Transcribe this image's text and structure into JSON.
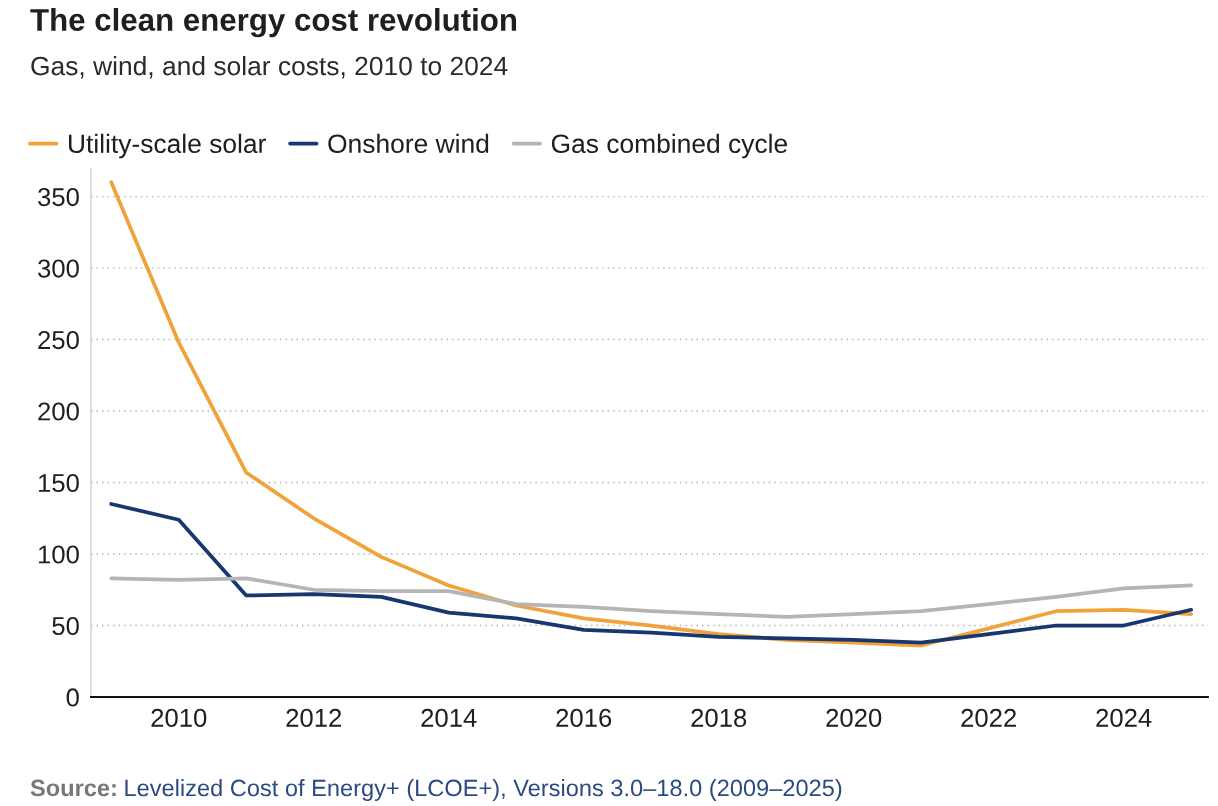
{
  "chart_data": {
    "type": "line",
    "title": "The clean energy cost revolution",
    "subtitle": "Gas, wind, and solar costs, 2010 to 2024",
    "x": [
      2009,
      2010,
      2011,
      2012,
      2013,
      2014,
      2015,
      2016,
      2017,
      2018,
      2019,
      2020,
      2021,
      2022,
      2023,
      2024,
      2025
    ],
    "series": [
      {
        "name": "Utility-scale solar",
        "color": "#f0a23b",
        "values": [
          360,
          248,
          157,
          125,
          98,
          78,
          64,
          55,
          50,
          44,
          40,
          38,
          36,
          48,
          60,
          61,
          58
        ]
      },
      {
        "name": "Onshore wind",
        "color": "#17376e",
        "values": [
          135,
          124,
          71,
          72,
          70,
          59,
          55,
          47,
          45,
          42,
          41,
          40,
          38,
          44,
          50,
          50,
          61
        ]
      },
      {
        "name": "Gas combined cycle",
        "color": "#b5b5b5",
        "values": [
          83,
          82,
          83,
          75,
          74,
          74,
          65,
          63,
          60,
          58,
          56,
          58,
          60,
          65,
          70,
          76,
          78
        ]
      }
    ],
    "xlim": [
      2008.7,
      2025.25
    ],
    "xticks": [
      2010,
      2012,
      2014,
      2016,
      2018,
      2020,
      2022,
      2024
    ],
    "ylim": [
      0,
      370
    ],
    "yticks": [
      0,
      50,
      100,
      150,
      200,
      250,
      300,
      350
    ],
    "grid": "y",
    "legend": "top left",
    "annotations": [
      "Source:",
      "Levelized Cost of Energy+ (LCOE+), Versions 3.0–18.0 (2009–2025)"
    ]
  }
}
